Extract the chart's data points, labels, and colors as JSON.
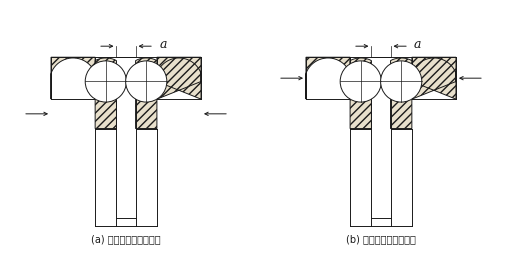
{
  "label_a": "(a) 修磨轴承内圈的内侧",
  "label_b": "(b) 修磨轴承外圈的内侧",
  "line_color": "#1a1a1a",
  "fill_color": "#e8e0cc",
  "fig_width": 5.07,
  "fig_height": 2.62,
  "bg_color": "#ffffff"
}
